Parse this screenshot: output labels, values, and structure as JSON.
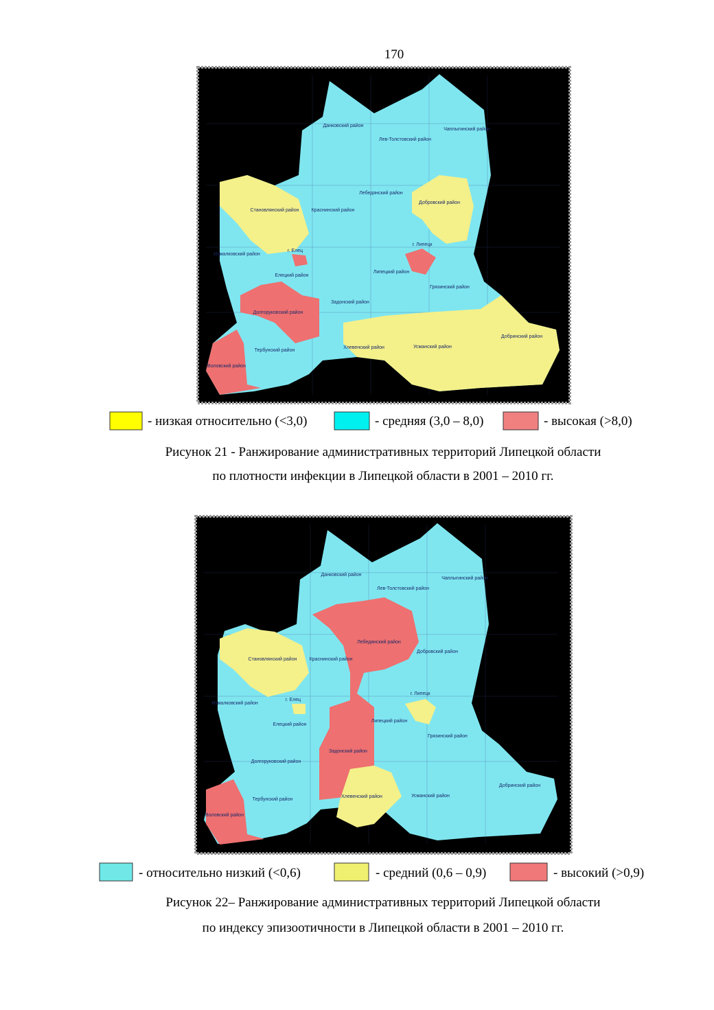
{
  "page_number": "170",
  "figures": [
    {
      "map_labels": [
        "Данковский район",
        "Лев-Толстовский район",
        "Чаплыгинский район",
        "Становлянский район",
        "Краснинский район",
        "Лебедянский район",
        "Добровский район",
        "Измалковский район",
        "г. Елец",
        "г. Липецк",
        "Елецкий район",
        "Липецкий район",
        "Грязинский район",
        "Задонский район",
        "Долгоруковский район",
        "Тербунский район",
        "Хлевенский район",
        "Усманский район",
        "Добринский район",
        "Воловский район"
      ],
      "legend": [
        {
          "label": "- низкая относительно (<3,0)",
          "color": "#ffff00"
        },
        {
          "label": "- средняя (3,0 – 8,0)",
          "color": "#00f0f0"
        },
        {
          "label": "- высокая (>8,0)",
          "color": "#f08080"
        }
      ],
      "caption": [
        "Рисунок 21 - Ранжирование административных территорий Липецкой области",
        "по плотности инфекции в Липецкой области в 2001 – 2010 гг."
      ]
    },
    {
      "map_labels": [
        "Данковский район",
        "Лев-Толстовский район",
        "Чаплыгинский район",
        "Становлянский район",
        "Краснинский район",
        "Лебедянский район",
        "Добровский район",
        "Измалковский район",
        "г. Елец",
        "г. Липецк",
        "Елецкий район",
        "Липецкий район",
        "Грязинский район",
        "Задонский район",
        "Долгоруковский район",
        "Тербунский район",
        "Хлевенский район",
        "Усманский район",
        "Добринский район",
        "Воловский район"
      ],
      "legend": [
        {
          "label": "- относительно низкий (<0,6)",
          "color": "#70e8e8"
        },
        {
          "label": "- средний (0,6 – 0,9)",
          "color": "#f0f070"
        },
        {
          "label": "- высокий (>0,9)",
          "color": "#f07878"
        }
      ],
      "caption": [
        "Рисунок 22– Ранжирование административных территорий Липецкой области",
        "по индексу эпизоотичности в Липецкой области в 2001 – 2010 гг."
      ]
    }
  ]
}
